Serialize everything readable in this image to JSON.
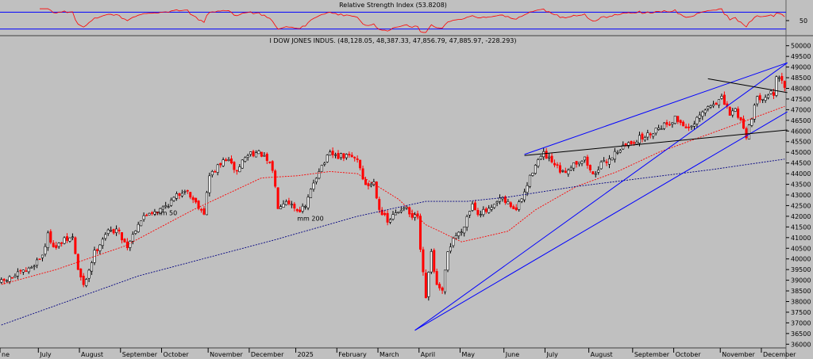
{
  "chart_data": [
    {
      "type": "line",
      "title": "Relative Strength Index (53.8208)",
      "yticks": [
        50
      ],
      "ylim": [
        20,
        80
      ],
      "bands": [
        70,
        30
      ],
      "colors": {
        "line": "#ff0000",
        "band": "#0000ff"
      }
    },
    {
      "type": "candlestick",
      "title": "I DOW JONES INDUS. (48,128.05, 48,387.33, 47,856.79, 47,885.97, -228.293)",
      "ylim": [
        35900,
        50100
      ],
      "yticks": [
        36000,
        36500,
        37000,
        37500,
        38000,
        38500,
        39000,
        39500,
        40000,
        40500,
        41000,
        41500,
        42000,
        42500,
        43000,
        43500,
        44000,
        44500,
        45000,
        45500,
        46000,
        46500,
        47000,
        47500,
        48000,
        48500,
        49000,
        49500,
        50000
      ],
      "xticks": [
        "ne",
        "July",
        "August",
        "September",
        "October",
        "November",
        "December",
        "2025",
        "February",
        "March",
        "April",
        "May",
        "June",
        "July",
        "August",
        "September",
        "October",
        "November",
        "December"
      ],
      "xtick_pos": [
        0,
        14,
        29,
        44,
        59,
        76,
        91,
        108,
        123,
        138,
        153,
        168,
        184,
        199,
        215,
        231,
        246,
        263,
        278
      ],
      "n_bars": 287,
      "price_points": [
        [
          0,
          38900
        ],
        [
          5,
          39200
        ],
        [
          10,
          39500
        ],
        [
          15,
          40200
        ],
        [
          17,
          41100
        ],
        [
          20,
          40500
        ],
        [
          22,
          40800
        ],
        [
          26,
          41000
        ],
        [
          28,
          39500
        ],
        [
          30,
          38700
        ],
        [
          34,
          40300
        ],
        [
          38,
          41200
        ],
        [
          42,
          41400
        ],
        [
          46,
          40600
        ],
        [
          50,
          41700
        ],
        [
          54,
          42200
        ],
        [
          58,
          42300
        ],
        [
          62,
          42700
        ],
        [
          67,
          43300
        ],
        [
          70,
          42800
        ],
        [
          74,
          42200
        ],
        [
          76,
          43900
        ],
        [
          79,
          44300
        ],
        [
          82,
          44700
        ],
        [
          86,
          44100
        ],
        [
          88,
          44600
        ],
        [
          91,
          45000
        ],
        [
          95,
          44900
        ],
        [
          99,
          44200
        ],
        [
          101,
          42500
        ],
        [
          104,
          42800
        ],
        [
          108,
          42300
        ],
        [
          111,
          42400
        ],
        [
          114,
          43600
        ],
        [
          116,
          44200
        ],
        [
          120,
          44900
        ],
        [
          123,
          44800
        ],
        [
          127,
          44800
        ],
        [
          130,
          44700
        ],
        [
          133,
          43400
        ],
        [
          136,
          43600
        ],
        [
          138,
          42400
        ],
        [
          141,
          41700
        ],
        [
          143,
          42000
        ],
        [
          147,
          42500
        ],
        [
          150,
          41900
        ],
        [
          152,
          42000
        ],
        [
          153,
          40300
        ],
        [
          155,
          38200
        ],
        [
          157,
          40300
        ],
        [
          159,
          38700
        ],
        [
          161,
          38400
        ],
        [
          163,
          40300
        ],
        [
          165,
          41000
        ],
        [
          168,
          41300
        ],
        [
          170,
          42000
        ],
        [
          172,
          42600
        ],
        [
          174,
          42200
        ],
        [
          176,
          42200
        ],
        [
          179,
          42300
        ],
        [
          182,
          42800
        ],
        [
          185,
          42600
        ],
        [
          188,
          42300
        ],
        [
          191,
          43100
        ],
        [
          195,
          44500
        ],
        [
          198,
          44900
        ],
        [
          201,
          44500
        ],
        [
          205,
          44000
        ],
        [
          209,
          44500
        ],
        [
          213,
          44700
        ],
        [
          216,
          43900
        ],
        [
          218,
          44300
        ],
        [
          222,
          44700
        ],
        [
          225,
          45100
        ],
        [
          229,
          45400
        ],
        [
          232,
          45600
        ],
        [
          236,
          45800
        ],
        [
          240,
          46200
        ],
        [
          244,
          46400
        ],
        [
          246,
          46600
        ],
        [
          249,
          46300
        ],
        [
          252,
          46100
        ],
        [
          255,
          46700
        ],
        [
          258,
          47100
        ],
        [
          260,
          47300
        ],
        [
          263,
          47500
        ],
        [
          266,
          46800
        ],
        [
          268,
          47000
        ],
        [
          270,
          46500
        ],
        [
          272,
          45800
        ],
        [
          274,
          46700
        ],
        [
          276,
          47500
        ],
        [
          279,
          47700
        ],
        [
          282,
          47800
        ],
        [
          283,
          48400
        ],
        [
          285,
          48300
        ],
        [
          287,
          47900
        ]
      ],
      "series": [
        {
          "name": "mm 50",
          "color": "#ff0000",
          "points": [
            [
              0,
              38800
            ],
            [
              20,
              39500
            ],
            [
              45,
              40600
            ],
            [
              70,
              42300
            ],
            [
              95,
              43800
            ],
            [
              108,
              43900
            ],
            [
              120,
              44100
            ],
            [
              130,
              44000
            ],
            [
              145,
              42800
            ],
            [
              155,
              41600
            ],
            [
              160,
              41300
            ],
            [
              168,
              40800
            ],
            [
              175,
              41000
            ],
            [
              185,
              41300
            ],
            [
              195,
              42300
            ],
            [
              210,
              43400
            ],
            [
              225,
              44100
            ],
            [
              240,
              45000
            ],
            [
              255,
              45700
            ],
            [
              268,
              46300
            ],
            [
              287,
              47200
            ]
          ]
        },
        {
          "name": "mm 200",
          "color": "#000080",
          "points": [
            [
              0,
              36900
            ],
            [
              50,
              39200
            ],
            [
              100,
              40900
            ],
            [
              130,
              42000
            ],
            [
              155,
              42700
            ],
            [
              170,
              42700
            ],
            [
              185,
              42900
            ],
            [
              210,
              43400
            ],
            [
              235,
              43800
            ],
            [
              260,
              44200
            ],
            [
              287,
              44700
            ]
          ]
        }
      ],
      "labels": [
        {
          "text": "mm 50",
          "x": 56,
          "y": 42050,
          "color": "#ff0000"
        },
        {
          "text": "mm 200",
          "x": 108,
          "y": 41800,
          "color": "#000080"
        }
      ],
      "trendlines": [
        {
          "color": "#0000ff",
          "from": [
            151,
            36650
          ],
          "to": [
            287,
            49200
          ]
        },
        {
          "color": "#0000ff",
          "from": [
            151,
            36650
          ],
          "to": [
            287,
            46900
          ]
        },
        {
          "color": "#0000ff",
          "from": [
            191,
            44900
          ],
          "to": [
            287,
            49200
          ]
        },
        {
          "color": "#000000",
          "from": [
            191,
            44850
          ],
          "to": [
            287,
            46050
          ]
        },
        {
          "color": "#000000",
          "from": [
            258,
            48450
          ],
          "to": [
            287,
            47800
          ]
        }
      ]
    }
  ]
}
